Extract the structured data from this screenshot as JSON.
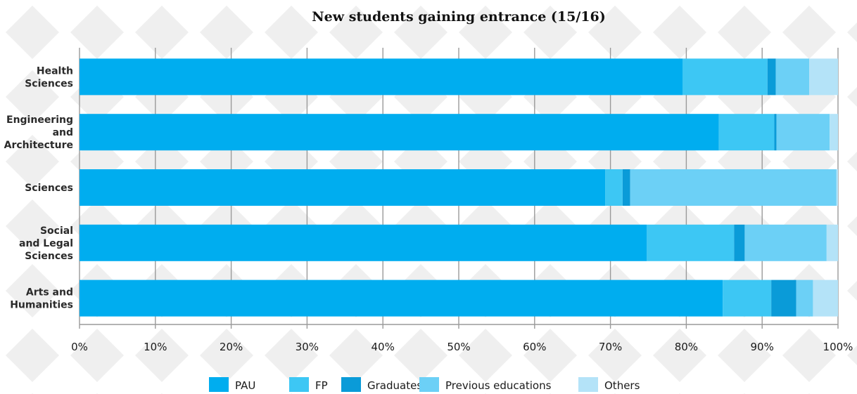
{
  "chart_data": {
    "type": "bar",
    "orientation": "horizontal",
    "stacked": true,
    "title": "New students gaining entrance (15/16)",
    "categories": [
      [
        "Health",
        "Sciences"
      ],
      [
        "Engineering",
        "and",
        "Architecture"
      ],
      [
        "Sciences"
      ],
      [
        "Social",
        "and Legal",
        "Sciences"
      ],
      [
        "Arts and",
        "Humanities"
      ]
    ],
    "series": [
      {
        "name": "PAU",
        "color": "#00adef",
        "values": [
          79.5,
          84.3,
          69.3,
          74.8,
          84.8
        ]
      },
      {
        "name": "FP",
        "color": "#3dc7f4",
        "values": [
          11.2,
          7.3,
          2.3,
          11.5,
          6.4
        ]
      },
      {
        "name": "Graduates",
        "color": "#0a9bd8",
        "values": [
          1.1,
          0.3,
          1.0,
          1.4,
          3.3
        ]
      },
      {
        "name": "Previous educations",
        "color": "#6cd0f6",
        "values": [
          4.4,
          7.0,
          27.2,
          10.8,
          2.2
        ]
      },
      {
        "name": "Others",
        "color": "#b4e3f8",
        "values": [
          3.8,
          1.1,
          0.2,
          1.5,
          3.3
        ]
      }
    ],
    "xlim": [
      0,
      100
    ],
    "xticks": [
      "0%",
      "10%",
      "20%",
      "30%",
      "40%",
      "50%",
      "60%",
      "70%",
      "80%",
      "90%",
      "100%"
    ],
    "grid": true,
    "legend": "bottom"
  }
}
